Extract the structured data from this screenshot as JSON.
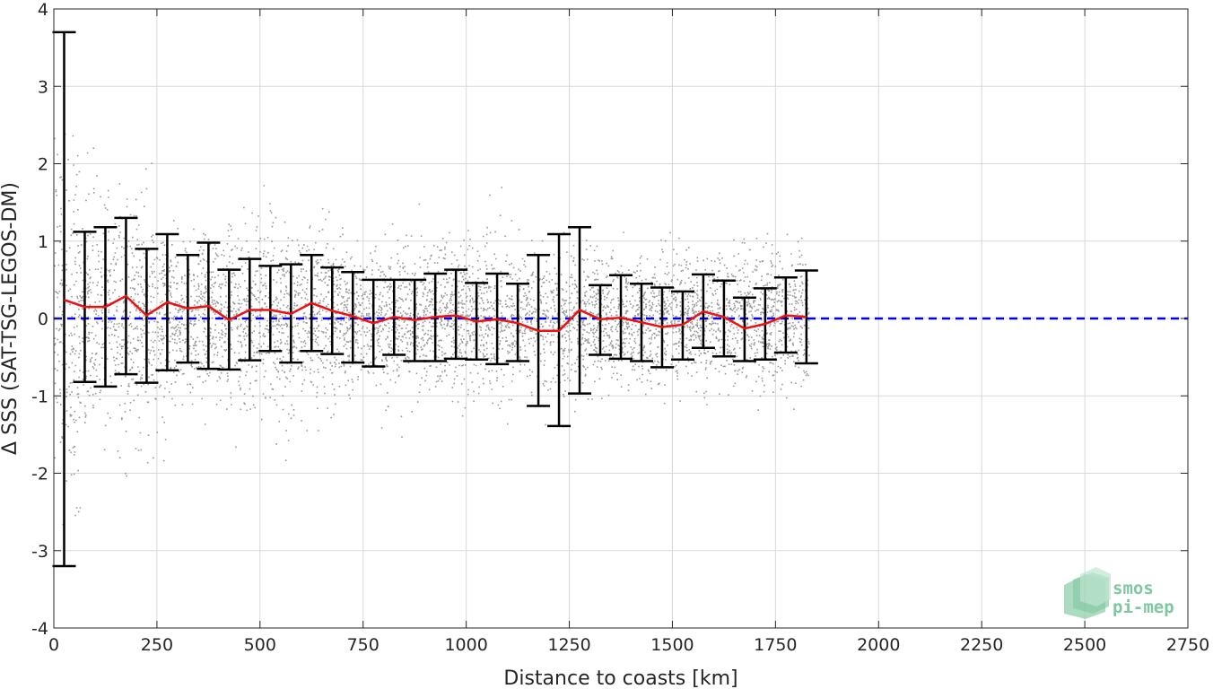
{
  "chart_data": {
    "type": "scatter",
    "title": "",
    "xlabel": "Distance to coasts [km]",
    "ylabel": "Δ SSS (SAT-TSG-LEGOS-DM)",
    "xlim": [
      0,
      2750
    ],
    "ylim": [
      -4,
      4
    ],
    "xticks": [
      0,
      250,
      500,
      750,
      1000,
      1250,
      1500,
      1750,
      2000,
      2250,
      2500,
      2750
    ],
    "yticks": [
      -4,
      -3,
      -2,
      -1,
      0,
      1,
      2,
      3,
      4
    ],
    "grid": true,
    "reference_line": {
      "y": 0,
      "color": "#0000ee",
      "style": "dashed"
    },
    "colors": {
      "scatter": "#808080",
      "mean_line": "#ee1111",
      "errorbars": "#000000",
      "grid": "#d9d9d9"
    },
    "series": [
      {
        "kind": "binned_mean_with_std",
        "x": [
          25,
          75,
          125,
          175,
          225,
          275,
          325,
          375,
          425,
          475,
          525,
          575,
          625,
          675,
          725,
          775,
          825,
          875,
          925,
          975,
          1025,
          1075,
          1125,
          1175,
          1225,
          1275,
          1325,
          1375,
          1425,
          1475,
          1525,
          1575,
          1625,
          1675,
          1725,
          1775,
          1825
        ],
        "mean": [
          0.24,
          0.15,
          0.15,
          0.29,
          0.04,
          0.21,
          0.13,
          0.16,
          -0.02,
          0.11,
          0.11,
          0.06,
          0.2,
          0.1,
          0.03,
          -0.06,
          0.02,
          -0.02,
          0.02,
          0.04,
          -0.04,
          -0.01,
          -0.06,
          -0.16,
          -0.16,
          0.11,
          -0.01,
          0.01,
          -0.05,
          -0.11,
          -0.08,
          0.09,
          0.02,
          -0.13,
          -0.07,
          0.04,
          0.02
        ],
        "upper": [
          3.7,
          1.12,
          1.18,
          1.3,
          0.9,
          1.09,
          0.82,
          0.98,
          0.63,
          0.77,
          0.68,
          0.7,
          0.82,
          0.66,
          0.6,
          0.5,
          0.5,
          0.5,
          0.58,
          0.63,
          0.46,
          0.58,
          0.45,
          0.82,
          1.09,
          1.18,
          0.43,
          0.56,
          0.45,
          0.4,
          0.35,
          0.57,
          0.49,
          0.27,
          0.39,
          0.53,
          0.62
        ],
        "lower": [
          -3.2,
          -0.82,
          -0.88,
          -0.72,
          -0.83,
          -0.67,
          -0.57,
          -0.65,
          -0.66,
          -0.54,
          -0.42,
          -0.57,
          -0.42,
          -0.46,
          -0.57,
          -0.62,
          -0.47,
          -0.55,
          -0.55,
          -0.52,
          -0.53,
          -0.59,
          -0.55,
          -1.13,
          -1.39,
          -0.97,
          -0.47,
          -0.52,
          -0.55,
          -0.63,
          -0.53,
          -0.38,
          -0.49,
          -0.55,
          -0.53,
          -0.44,
          -0.58
        ]
      }
    ],
    "scatter_spread": [
      {
        "x_range": [
          0,
          60
        ],
        "sd": 1.1
      },
      {
        "x_range": [
          60,
          250
        ],
        "sd": 0.7
      },
      {
        "x_range": [
          250,
          700
        ],
        "sd": 0.55
      },
      {
        "x_range": [
          700,
          1300
        ],
        "sd": 0.45
      },
      {
        "x_range": [
          1300,
          1830
        ],
        "sd": 0.4
      }
    ]
  },
  "logo": {
    "line1": "smos",
    "line2": "pi-mep",
    "color": "#7fc7a0"
  }
}
